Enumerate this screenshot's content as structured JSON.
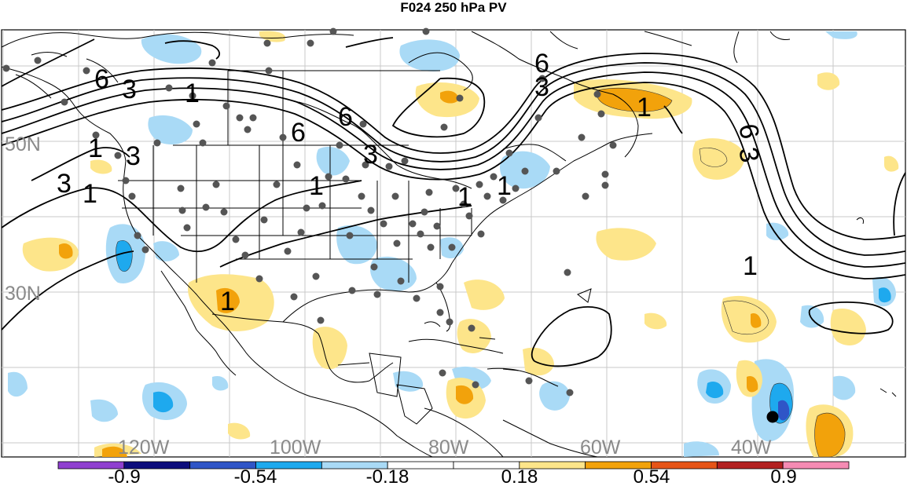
{
  "title": "F024 250 hPa PV",
  "map": {
    "lat_labels": [
      "50N",
      "30N"
    ],
    "lon_labels": [
      "120W",
      "100W",
      "80W",
      "60W",
      "40W"
    ],
    "contour_labels": [
      "6",
      "3",
      "1",
      "6",
      "3",
      "1",
      "6",
      "3",
      "1",
      "3",
      "1",
      "1",
      "1",
      "6",
      "3",
      "1",
      "1",
      "6",
      "3",
      "1"
    ]
  },
  "colorbar": {
    "tick_labels": [
      "-0.9",
      "-0.54",
      "-0.18",
      "0.18",
      "0.54",
      "0.9"
    ],
    "colors": [
      "#8f3fd0",
      "#0d0d7c",
      "#2f55c7",
      "#1ea9ee",
      "#a9daf6",
      "#ffffff",
      "#ffffff",
      "#fde58a",
      "#f2a20b",
      "#e65417",
      "#b22020",
      "#f58bb3"
    ]
  },
  "colors": {
    "state_boundaries": "#000000",
    "gridlines": "#c8c8c8",
    "observation_dots": "#555555"
  }
}
